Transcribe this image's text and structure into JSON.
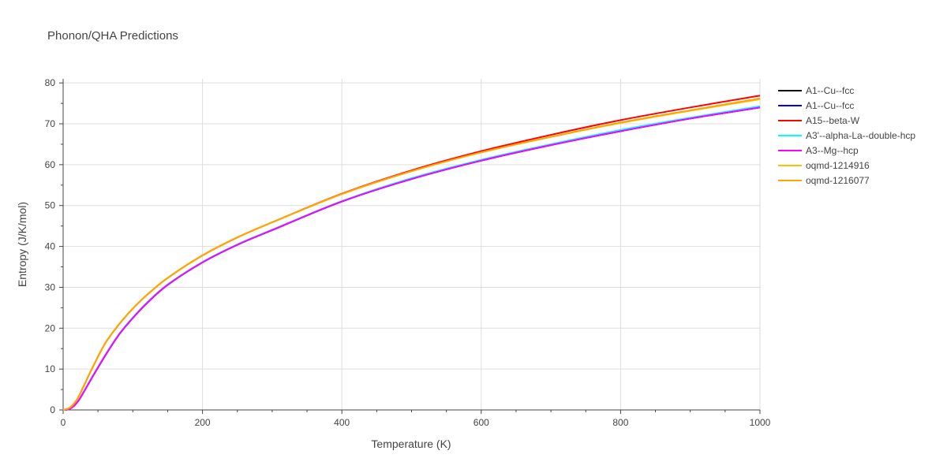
{
  "chart_data": {
    "type": "line",
    "title": "Phonon/QHA Predictions",
    "xlabel": "Temperature (K)",
    "ylabel": "Entropy (J/K/mol)",
    "xlim": [
      0,
      1000
    ],
    "ylim": [
      0,
      81
    ],
    "x_ticks": [
      0,
      200,
      400,
      600,
      800,
      1000
    ],
    "y_ticks": [
      0,
      10,
      20,
      30,
      40,
      50,
      60,
      70,
      80
    ],
    "grid": true,
    "legend_position": "right",
    "series": [
      {
        "name": "A1--Cu--fcc",
        "color": "#000000",
        "x": [
          0,
          10,
          20,
          30,
          40,
          60,
          80,
          100,
          120,
          150,
          200,
          250,
          300,
          400,
          500,
          600,
          700,
          800,
          900,
          1000
        ],
        "y": [
          0,
          0.3,
          1.8,
          4.5,
          7.5,
          13.2,
          18.4,
          22.5,
          26.1,
          30.6,
          36.1,
          40.4,
          44.0,
          51.0,
          56.5,
          61.0,
          64.8,
          68.2,
          71.3,
          74.0
        ]
      },
      {
        "name": "A1--Cu--fcc",
        "color": "#0000ff",
        "x": [
          0,
          10,
          20,
          30,
          40,
          60,
          80,
          100,
          120,
          150,
          200,
          250,
          300,
          400,
          500,
          600,
          700,
          800,
          900,
          1000
        ],
        "y": [
          0,
          0.3,
          1.8,
          4.5,
          7.5,
          13.2,
          18.4,
          22.5,
          26.1,
          30.6,
          36.1,
          40.4,
          44.0,
          51.0,
          56.5,
          61.0,
          64.8,
          68.2,
          71.3,
          74.0
        ]
      },
      {
        "name": "A15--beta-W",
        "color": "#ff0000",
        "x": [
          0,
          10,
          20,
          30,
          40,
          60,
          80,
          100,
          120,
          150,
          200,
          250,
          300,
          400,
          500,
          600,
          700,
          800,
          900,
          1000
        ],
        "y": [
          0,
          0.6,
          2.6,
          6.0,
          9.6,
          16.2,
          20.9,
          24.8,
          28.1,
          32.3,
          37.8,
          42.2,
          45.9,
          52.9,
          58.6,
          63.3,
          67.3,
          70.9,
          74.0,
          76.9
        ]
      },
      {
        "name": "A3'--alpha-La--double-hcp",
        "color": "#00ffff",
        "x": [
          0,
          10,
          20,
          30,
          40,
          60,
          80,
          100,
          120,
          150,
          200,
          250,
          300,
          400,
          500,
          600,
          700,
          800,
          900,
          1000
        ],
        "y": [
          0,
          0.3,
          1.8,
          4.5,
          7.6,
          13.3,
          18.5,
          22.6,
          26.2,
          30.7,
          36.2,
          40.5,
          44.1,
          51.1,
          56.7,
          61.2,
          65.0,
          68.5,
          71.5,
          74.3
        ]
      },
      {
        "name": "A3--Mg--hcp",
        "color": "#ff00ff",
        "x": [
          0,
          10,
          20,
          30,
          40,
          60,
          80,
          100,
          120,
          150,
          200,
          250,
          300,
          400,
          500,
          600,
          700,
          800,
          900,
          1000
        ],
        "y": [
          0,
          0.3,
          1.8,
          4.5,
          7.5,
          13.2,
          18.4,
          22.5,
          26.1,
          30.6,
          36.1,
          40.4,
          44.0,
          51.0,
          56.5,
          61.0,
          64.8,
          68.2,
          71.3,
          74.0
        ]
      },
      {
        "name": "oqmd-1214916",
        "color": "#ffbf00",
        "x": [
          0,
          10,
          20,
          30,
          40,
          60,
          80,
          100,
          120,
          150,
          200,
          250,
          300,
          400,
          500,
          600,
          700,
          800,
          900,
          1000
        ],
        "y": [
          0,
          0.6,
          2.6,
          6.0,
          9.6,
          16.2,
          20.9,
          24.8,
          28.1,
          32.3,
          37.8,
          42.2,
          45.9,
          52.8,
          58.4,
          63.0,
          66.8,
          70.2,
          73.2,
          76.0
        ]
      },
      {
        "name": "oqmd-1216077",
        "color": "#ffa500",
        "x": [
          0,
          10,
          20,
          30,
          40,
          60,
          80,
          100,
          120,
          150,
          200,
          250,
          300,
          400,
          500,
          600,
          700,
          800,
          900,
          1000
        ],
        "y": [
          0,
          0.6,
          2.6,
          6.0,
          9.6,
          16.2,
          20.9,
          24.8,
          28.1,
          32.3,
          37.8,
          42.2,
          45.9,
          52.8,
          58.4,
          63.0,
          66.8,
          70.3,
          73.3,
          76.2
        ]
      }
    ]
  }
}
